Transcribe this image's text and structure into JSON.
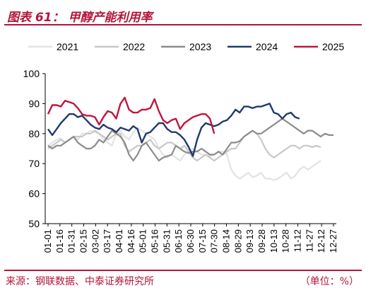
{
  "header": {
    "title": "图表 61：  甲醇产能利用率"
  },
  "footer": {
    "source": "来源：钢联数据、中泰证券研究所",
    "unit": "（单位：%）"
  },
  "chart_data": {
    "type": "line",
    "ylim": [
      50,
      100
    ],
    "yticks": [
      50,
      60,
      70,
      80,
      90,
      100
    ],
    "xticks": [
      "01-01",
      "01-16",
      "01-31",
      "02-15",
      "03-02",
      "03-17",
      "04-01",
      "04-16",
      "05-01",
      "05-16",
      "05-31",
      "06-15",
      "06-30",
      "07-15",
      "07-30",
      "08-14",
      "08-29",
      "09-13",
      "09-28",
      "10-13",
      "10-28",
      "11-12",
      "11-27",
      "12-12",
      "12-27"
    ],
    "legend_position": "top",
    "grid": false,
    "series": [
      {
        "name": "2021",
        "color": "#e3e3e3",
        "values": [
          76,
          77,
          78,
          78.5,
          77,
          78,
          79,
          78,
          80,
          80,
          81,
          80.5,
          80,
          78,
          77,
          76,
          80,
          81,
          79,
          78,
          80.5,
          82,
          81,
          80,
          79,
          78,
          75,
          73,
          72,
          73,
          72,
          71,
          73,
          74,
          75,
          74,
          73,
          73,
          72.5,
          73,
          74,
          74,
          73,
          68,
          66,
          65,
          66,
          67,
          65.5,
          66,
          67,
          65,
          65,
          64.5,
          65,
          66,
          67,
          65,
          66,
          68,
          69,
          68,
          69,
          70,
          71
        ]
      },
      {
        "name": "2022",
        "color": "#c8c8c8",
        "values": [
          75,
          76,
          77,
          78,
          77,
          78,
          79,
          79,
          79,
          80,
          80,
          81,
          80,
          79,
          78,
          79,
          80,
          80,
          76,
          74,
          75,
          76,
          76,
          77,
          78,
          76,
          75,
          76,
          77,
          77,
          76,
          75,
          76,
          74,
          72,
          71,
          72,
          73,
          72,
          71,
          72,
          73,
          74,
          75,
          75,
          77,
          79,
          80,
          81,
          80,
          78,
          75,
          73,
          72,
          73,
          74,
          75,
          76,
          76,
          75,
          76,
          76,
          75.5,
          76,
          75.5
        ]
      },
      {
        "name": "2023",
        "color": "#8c8c8c",
        "values": [
          76,
          75,
          76,
          76,
          77,
          78,
          79,
          77,
          76,
          75,
          75,
          76,
          78,
          77,
          79,
          81,
          80,
          79,
          77,
          73,
          71,
          73,
          76,
          77,
          75,
          73,
          71,
          72,
          72.5,
          73,
          76,
          75,
          74,
          73.5,
          74,
          74,
          75,
          74,
          73,
          73,
          74,
          73,
          75,
          77,
          77,
          77.5,
          79,
          80,
          81,
          80,
          80,
          81,
          82,
          83,
          84,
          85,
          84,
          83,
          82,
          81,
          80,
          81,
          81,
          80,
          79,
          80,
          79.5,
          79.5
        ]
      },
      {
        "name": "2024",
        "color": "#1f3a6e",
        "values": [
          81.5,
          79.5,
          81.5,
          83.5,
          85,
          86.5,
          86.5,
          85.5,
          86,
          84.5,
          83,
          82,
          81.5,
          83,
          82,
          81.5,
          80.5,
          82,
          81.5,
          81,
          82.5,
          81.5,
          77,
          80,
          80.5,
          82,
          83.5,
          83.5,
          81.5,
          80.5,
          80.5,
          79.5,
          78,
          75.5,
          72.5,
          78,
          82,
          83.5,
          83,
          82.5,
          83,
          84,
          84.5,
          86,
          88,
          87,
          89,
          89,
          88.5,
          89,
          89,
          89.5,
          90,
          87,
          86.5,
          85,
          86.5,
          87,
          85.5,
          85
        ]
      },
      {
        "name": "2025",
        "color": "#c0163f",
        "values": [
          86.5,
          89.5,
          89.5,
          89,
          91,
          90.5,
          90,
          88.5,
          86.5,
          86,
          86,
          85.5,
          83,
          85.5,
          87.5,
          87,
          85,
          90,
          92,
          88,
          87,
          87,
          88,
          88,
          88.5,
          91.5,
          87.5,
          84.5,
          83.5,
          84.5,
          85,
          81.5,
          83.5,
          84.5,
          85.5,
          86,
          86.5,
          86.5,
          85,
          80
        ]
      }
    ]
  }
}
